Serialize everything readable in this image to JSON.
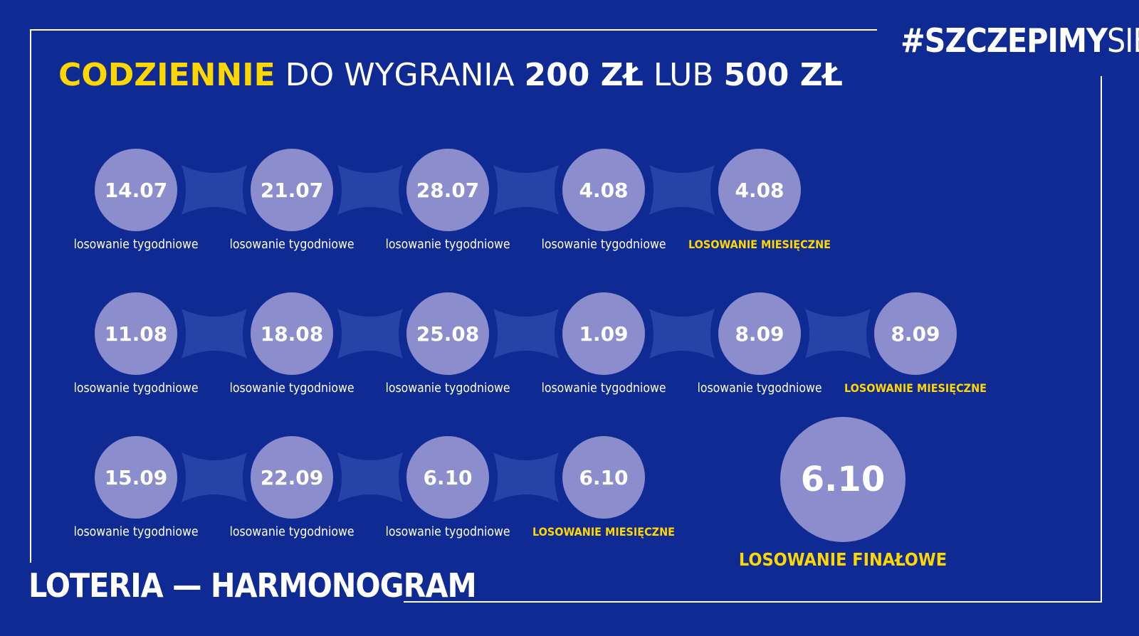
{
  "hashtag": {
    "bold": "#SZCZEPIMY",
    "thin": "SIĘ"
  },
  "headline": {
    "highlight": "CODZIENNIE",
    "part1": "DO WYGRANIA",
    "amount1": "200 ZŁ",
    "part2": "LUB",
    "amount2": "500 ZŁ"
  },
  "rows": [
    [
      {
        "date": "14.07",
        "label": "losowanie tygodniowe",
        "type": "weekly"
      },
      {
        "date": "21.07",
        "label": "losowanie tygodniowe",
        "type": "weekly"
      },
      {
        "date": "28.07",
        "label": "losowanie tygodniowe",
        "type": "weekly"
      },
      {
        "date": "4.08",
        "label": "losowanie tygodniowe",
        "type": "weekly"
      },
      {
        "date": "4.08",
        "label": "LOSOWANIE MIESIĘCZNE",
        "type": "monthly"
      }
    ],
    [
      {
        "date": "11.08",
        "label": "losowanie tygodniowe",
        "type": "weekly"
      },
      {
        "date": "18.08",
        "label": "losowanie tygodniowe",
        "type": "weekly"
      },
      {
        "date": "25.08",
        "label": "losowanie tygodniowe",
        "type": "weekly"
      },
      {
        "date": "1.09",
        "label": "losowanie tygodniowe",
        "type": "weekly"
      },
      {
        "date": "8.09",
        "label": "losowanie tygodniowe",
        "type": "weekly"
      },
      {
        "date": "8.09",
        "label": "LOSOWANIE MIESIĘCZNE",
        "type": "monthly"
      }
    ],
    [
      {
        "date": "15.09",
        "label": "losowanie tygodniowe",
        "type": "weekly"
      },
      {
        "date": "22.09",
        "label": "losowanie tygodniowe",
        "type": "weekly"
      },
      {
        "date": "6.10",
        "label": "losowanie tygodniowe",
        "type": "weekly"
      },
      {
        "date": "6.10",
        "label": "LOSOWANIE MIESIĘCZNE",
        "type": "monthly"
      }
    ]
  ],
  "final": {
    "date": "6.10",
    "label": "LOSOWANIE FINAŁOWE"
  },
  "footer": {
    "title": "LOTERIA — HARMONOGRAM"
  },
  "colors": {
    "background": "#0f2a93",
    "circle": "#8b8dcc",
    "connector": "#2743a8",
    "accent": "#ffd700",
    "text": "#ffffff"
  }
}
